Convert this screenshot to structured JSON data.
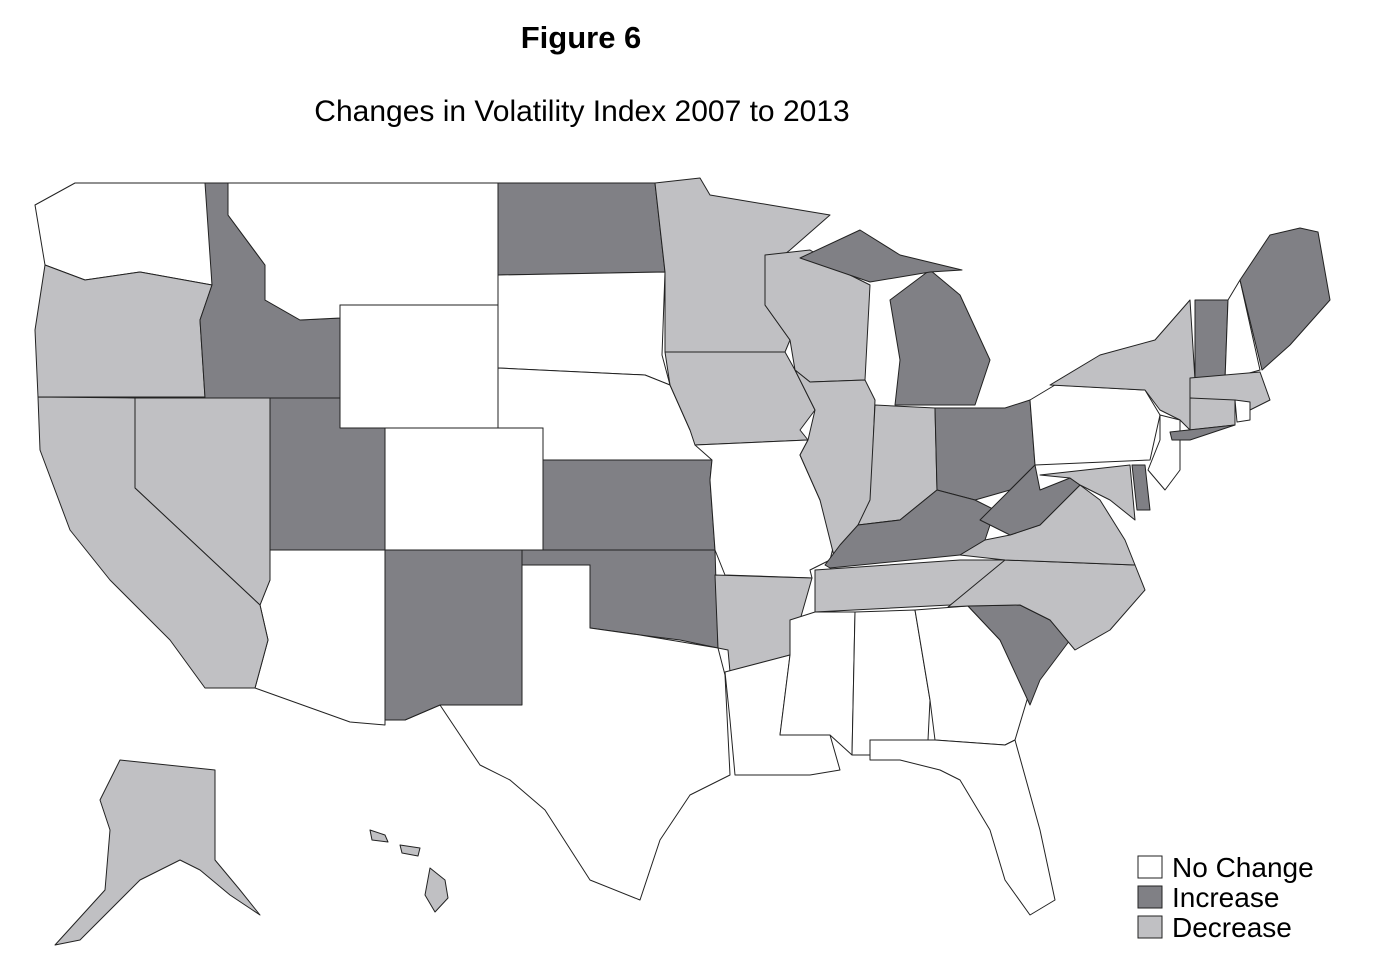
{
  "figure": "Figure 6",
  "title": "Changes in Volatility Index 2007 to 2013",
  "legend": [
    {
      "label": "No Change",
      "color": "#ffffff"
    },
    {
      "label": "Increase",
      "color": "#808085"
    },
    {
      "label": "Decrease",
      "color": "#c0c0c3"
    }
  ],
  "regions": [
    0,
    2,
    1,
    0,
    0,
    1,
    0,
    0,
    1,
    1,
    0,
    1,
    0,
    1,
    0,
    2,
    2,
    2,
    2,
    0,
    2,
    0,
    2,
    2,
    1,
    1,
    2,
    1,
    1,
    2,
    0,
    0,
    0,
    0,
    1,
    2,
    2,
    1,
    0,
    2,
    0,
    2,
    1,
    1,
    0,
    1,
    2,
    2,
    1,
    0,
    2,
    2,
    2,
    2
  ]
}
